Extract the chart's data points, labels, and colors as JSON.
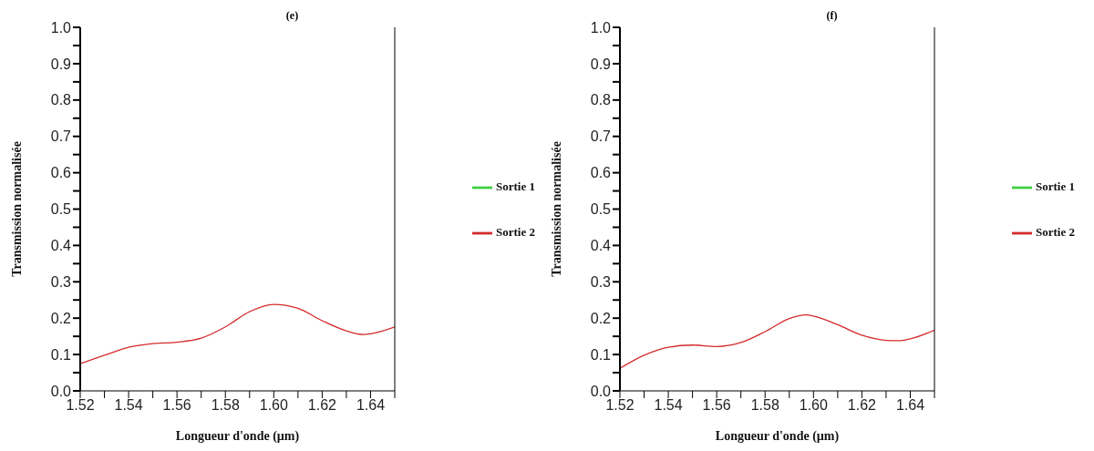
{
  "chart_data": [
    {
      "type": "line",
      "title": "(e)",
      "xlabel": "Longueur d'onde (µm)",
      "ylabel": "Transmission normalisée",
      "xlim": [
        1.52,
        1.65
      ],
      "ylim": [
        0,
        1
      ],
      "xticks": [
        1.52,
        {
          "value": 1.53,
          "label": null
        },
        1.54,
        {
          "value": 1.55,
          "label": null
        },
        1.56,
        {
          "value": 1.57,
          "label": null
        },
        1.58,
        {
          "value": 1.59,
          "label": null
        },
        {
          "value": 1.6,
          "label": "1.60"
        },
        {
          "value": 1.61,
          "label": null
        },
        1.62,
        {
          "value": 1.63,
          "label": null
        },
        1.64,
        {
          "value": 1.65,
          "label": null
        }
      ],
      "yticks": [
        {
          "value": 0,
          "label": "0.0"
        },
        {
          "value": 0.05,
          "label": null
        },
        0.1,
        {
          "value": 0.15,
          "label": null
        },
        0.2,
        {
          "value": 0.25,
          "label": null
        },
        0.3,
        {
          "value": 0.35,
          "label": null
        },
        0.4,
        {
          "value": 0.45,
          "label": null
        },
        0.5,
        {
          "value": 0.55,
          "label": null
        },
        0.6,
        {
          "value": 0.65,
          "label": null
        },
        0.7,
        {
          "value": 0.75,
          "label": null
        },
        0.8,
        {
          "value": 0.85,
          "label": null
        },
        0.9,
        {
          "value": 0.95,
          "label": null
        },
        {
          "value": 1,
          "label": "1.0"
        }
      ],
      "x": [
        1.52,
        1.53,
        1.54,
        1.55,
        1.56,
        1.57,
        1.58,
        1.59,
        1.6,
        1.61,
        1.62,
        1.63,
        1.637,
        1.64,
        1.65
      ],
      "series": [
        {
          "name": "Sortie 1",
          "color": "#3fcf3f",
          "values": [
            null,
            null,
            null,
            null,
            null,
            null,
            null,
            null,
            null,
            null,
            null,
            null,
            null,
            null,
            null
          ]
        },
        {
          "name": "Sortie 2",
          "color": "#d42a2a",
          "values": [
            0.075,
            0.098,
            0.12,
            0.13,
            0.134,
            0.145,
            0.176,
            0.218,
            0.238,
            0.227,
            0.193,
            0.165,
            0.155,
            0.157,
            0.176
          ]
        }
      ],
      "legend": "right",
      "marker": "none",
      "line_style": "solid"
    },
    {
      "type": "line",
      "title": "(f)",
      "xlabel": "Longueur d'onde (µm)",
      "ylabel": "Transmission normalisée",
      "xlim": [
        1.52,
        1.65
      ],
      "ylim": [
        0,
        1
      ],
      "xticks": [
        1.52,
        {
          "value": 1.53,
          "label": null
        },
        1.54,
        {
          "value": 1.55,
          "label": null
        },
        1.56,
        {
          "value": 1.57,
          "label": null
        },
        1.58,
        {
          "value": 1.59,
          "label": null
        },
        {
          "value": 1.6,
          "label": "1.60"
        },
        {
          "value": 1.61,
          "label": null
        },
        1.62,
        {
          "value": 1.63,
          "label": null
        },
        1.64,
        {
          "value": 1.65,
          "label": null
        }
      ],
      "yticks": [
        {
          "value": 0,
          "label": "0.0"
        },
        {
          "value": 0.05,
          "label": null
        },
        0.1,
        {
          "value": 0.15,
          "label": null
        },
        0.2,
        {
          "value": 0.25,
          "label": null
        },
        0.3,
        {
          "value": 0.35,
          "label": null
        },
        0.4,
        {
          "value": 0.45,
          "label": null
        },
        0.5,
        {
          "value": 0.55,
          "label": null
        },
        0.6,
        {
          "value": 0.65,
          "label": null
        },
        0.7,
        {
          "value": 0.75,
          "label": null
        },
        0.8,
        {
          "value": 0.85,
          "label": null
        },
        0.9,
        {
          "value": 0.95,
          "label": null
        },
        {
          "value": 1,
          "label": "1.0"
        }
      ],
      "x": [
        1.52,
        1.53,
        1.54,
        1.55,
        1.56,
        1.57,
        1.58,
        1.59,
        1.597,
        1.6,
        1.61,
        1.62,
        1.63,
        1.635,
        1.64,
        1.65
      ],
      "series": [
        {
          "name": "Sortie 1",
          "color": "#3fcf3f",
          "values": [
            null,
            null,
            null,
            null,
            null,
            null,
            null,
            null,
            null,
            null,
            null,
            null,
            null,
            null,
            null,
            null
          ]
        },
        {
          "name": "Sortie 2",
          "color": "#d42a2a",
          "values": [
            0.062,
            0.098,
            0.12,
            0.126,
            0.122,
            0.133,
            0.163,
            0.199,
            0.209,
            0.206,
            0.182,
            0.153,
            0.139,
            0.138,
            0.143,
            0.167
          ]
        }
      ],
      "legend": "right",
      "marker": "none",
      "line_style": "solid"
    }
  ]
}
